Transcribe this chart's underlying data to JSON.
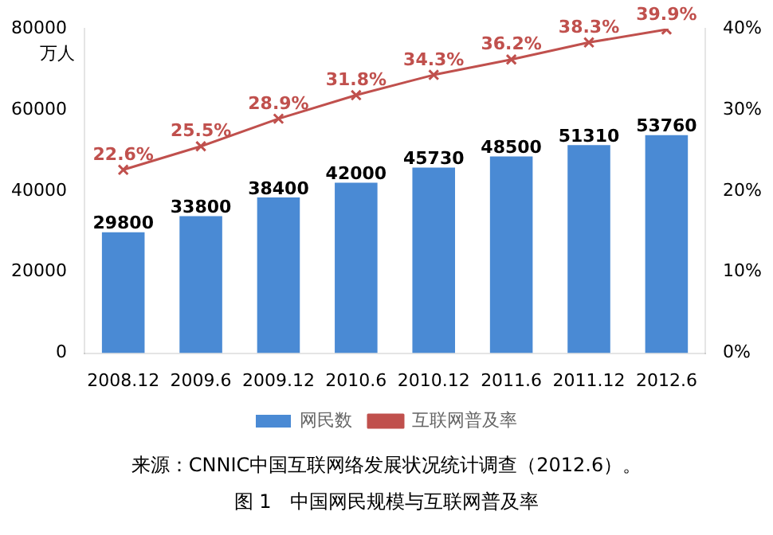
{
  "chart_data": {
    "type": "bar",
    "ylabel": "万人",
    "annotations": [
      "来源：CNNIC中国互联网络发展状况统计调查（2012.6）。",
      "图 1　中国网民规模与互联网普及率"
    ],
    "categories": [
      "2008.12",
      "2009.6",
      "2009.12",
      "2010.6",
      "2010.12",
      "2011.6",
      "2011.12",
      "2012.6"
    ],
    "series": [
      {
        "name": "网民数",
        "color": "#4a8ad4",
        "values": [
          29800,
          33800,
          38400,
          42000,
          45730,
          48500,
          51310,
          53760
        ],
        "value_labels": [
          "29800",
          "33800",
          "38400",
          "42000",
          "45730",
          "48500",
          "51310",
          "53760"
        ]
      },
      {
        "name": "互联网普及率",
        "type": "line",
        "axis": "y2",
        "color": "#c0504d",
        "marker": "cross",
        "values": [
          22.6,
          25.5,
          28.9,
          31.8,
          34.3,
          36.2,
          38.3,
          39.9
        ],
        "value_labels": [
          "22.6%",
          "25.5%",
          "28.9%",
          "31.8%",
          "34.3%",
          "36.2%",
          "38.3%",
          "39.9%"
        ]
      }
    ],
    "ylim": [
      0,
      80000
    ],
    "yticks": [
      0,
      20000,
      40000,
      60000,
      80000
    ],
    "y2lim": [
      0,
      40
    ],
    "y2ticks": [
      {
        "value": 0,
        "label": "0%"
      },
      {
        "value": 10,
        "label": "10%"
      },
      {
        "value": 20,
        "label": "20%"
      },
      {
        "value": 30,
        "label": "30%"
      },
      {
        "value": 40,
        "label": "40%"
      }
    ],
    "legend": "bottom"
  }
}
